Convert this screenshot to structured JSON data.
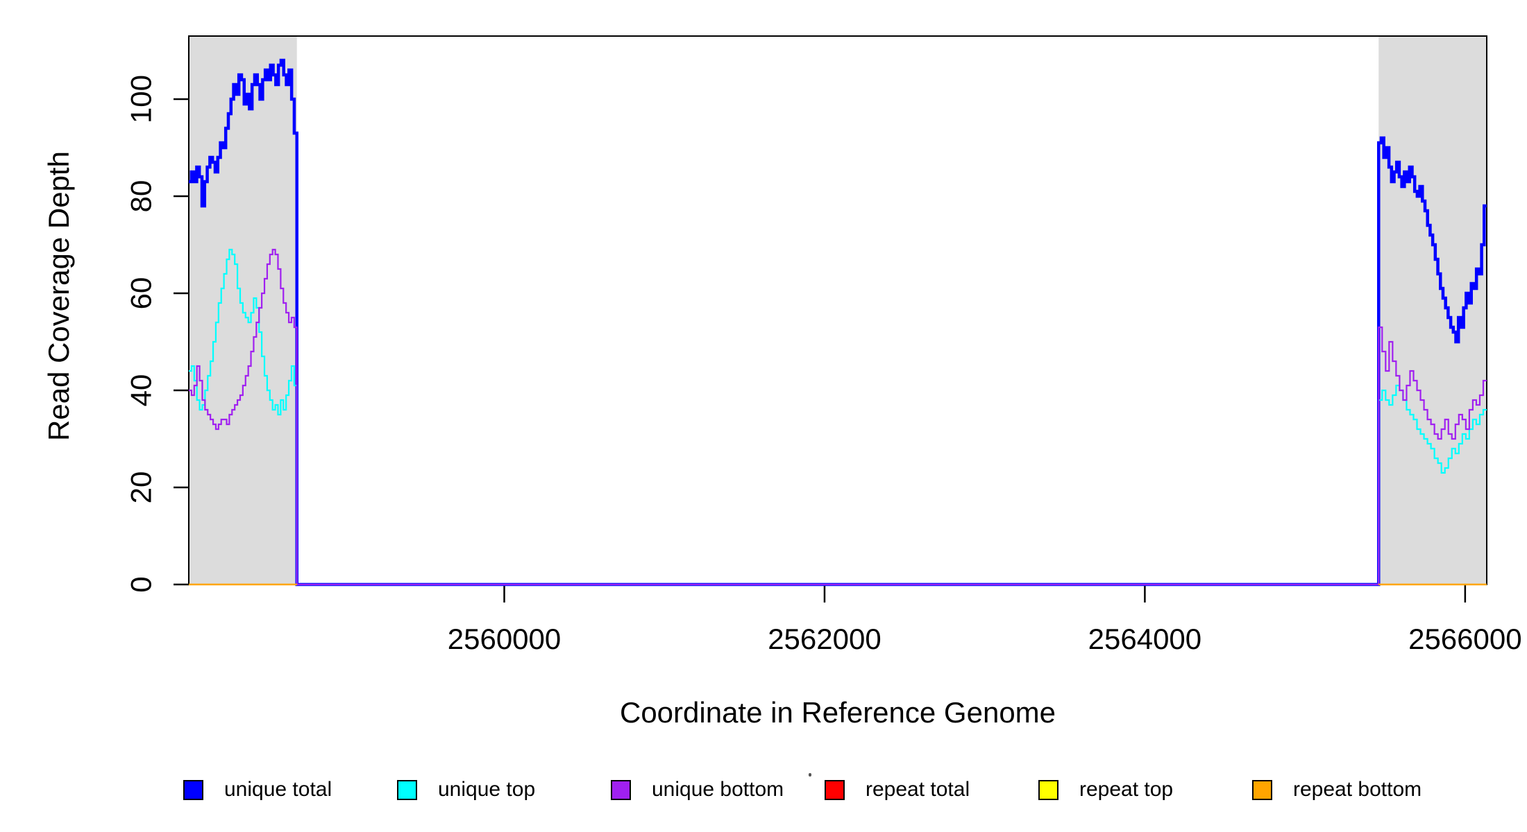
{
  "figure": {
    "background": "#ffffff",
    "xlabel": "Coordinate in Reference Genome",
    "ylabel": "Read Coverage Depth",
    "axis_color": "#000000",
    "shading_color": "#dcdcdc"
  },
  "legend": {
    "position": "bottom",
    "items": [
      {
        "label": "unique total",
        "color": "#0000ff"
      },
      {
        "label": "unique top",
        "color": "#00ffff"
      },
      {
        "label": "unique bottom",
        "color": "#a020f0"
      },
      {
        "label": "repeat total",
        "color": "#ff0000"
      },
      {
        "label": "repeat top",
        "color": "#ffff00"
      },
      {
        "label": "repeat bottom",
        "color": "#ffa500"
      }
    ]
  },
  "chart_data": {
    "type": "line",
    "subtype": "step",
    "title": "",
    "xlabel": "Coordinate in Reference Genome",
    "ylabel": "Read Coverage Depth",
    "x_ticks": [
      2560000,
      2562000,
      2564000,
      2566000
    ],
    "y_ticks": [
      0,
      20,
      40,
      60,
      80,
      100
    ],
    "x_range": [
      2558030,
      2566135
    ],
    "y_range": [
      0,
      113
    ],
    "grid": false,
    "legend_position": "bottom",
    "shaded_regions": [
      {
        "name": "left repeat region",
        "x_start": 2558030,
        "x_end": 2558705
      },
      {
        "name": "right repeat region",
        "x_start": 2565460,
        "x_end": 2566135
      }
    ],
    "series": [
      {
        "name": "unique total",
        "color": "#0000ff",
        "width": 4.5,
        "extent": "full",
        "left_values": [
          83,
          85,
          83,
          86,
          84,
          78,
          83,
          86,
          88,
          87,
          85,
          88,
          91,
          90,
          94,
          97,
          100,
          103,
          101,
          105,
          104,
          99,
          101,
          98,
          103,
          105,
          103,
          100,
          104,
          106,
          104,
          107,
          105,
          103,
          107,
          108,
          105,
          103,
          106,
          100,
          93
        ],
        "right_values": [
          91,
          92,
          88,
          90,
          86,
          83,
          85,
          87,
          84,
          82,
          85,
          83,
          86,
          84,
          81,
          80,
          82,
          79,
          77,
          74,
          72,
          70,
          67,
          64,
          61,
          59,
          57,
          55,
          53,
          52,
          50,
          55,
          53,
          57,
          60,
          58,
          62,
          61,
          65,
          64,
          70,
          78
        ]
      },
      {
        "name": "unique top",
        "color": "#00ffff",
        "width": 2.2,
        "extent": "full",
        "left_values": [
          44,
          45,
          42,
          38,
          36,
          37,
          40,
          43,
          46,
          50,
          54,
          58,
          61,
          64,
          67,
          69,
          68,
          66,
          61,
          58,
          56,
          55,
          54,
          56,
          59,
          57,
          52,
          47,
          43,
          40,
          38,
          36,
          37,
          35,
          38,
          36,
          39,
          42,
          45,
          41
        ],
        "right_values": [
          38,
          40,
          38,
          37,
          39,
          41,
          40,
          38,
          36,
          35,
          34,
          32,
          31,
          30,
          29,
          28,
          26,
          25,
          23,
          24,
          26,
          28,
          27,
          29,
          31,
          30,
          32,
          34,
          33,
          35,
          36
        ]
      },
      {
        "name": "unique bottom",
        "color": "#a020f0",
        "width": 2.2,
        "extent": "full",
        "left_values": [
          40,
          39,
          41,
          45,
          42,
          38,
          36,
          35,
          34,
          33,
          32,
          33,
          34,
          34,
          33,
          35,
          36,
          37,
          38,
          39,
          41,
          43,
          45,
          48,
          51,
          54,
          57,
          60,
          63,
          66,
          68,
          69,
          68,
          65,
          61,
          58,
          56,
          54,
          55,
          53
        ],
        "right_values": [
          53,
          48,
          44,
          50,
          46,
          43,
          40,
          38,
          41,
          44,
          42,
          40,
          38,
          36,
          34,
          33,
          31,
          30,
          32,
          34,
          31,
          30,
          33,
          35,
          34,
          32,
          36,
          38,
          37,
          39,
          42
        ]
      },
      {
        "name": "repeat total",
        "color": "#ff0000",
        "width": 2,
        "extent": "regions",
        "left_values": [
          0,
          0
        ],
        "right_values": [
          0,
          0
        ]
      },
      {
        "name": "repeat top",
        "color": "#ffff00",
        "width": 2,
        "extent": "regions",
        "left_values": [
          0,
          0
        ],
        "right_values": [
          0,
          0
        ]
      },
      {
        "name": "repeat bottom",
        "color": "#ffa500",
        "width": 2.6,
        "extent": "regions",
        "left_values": [
          0,
          0
        ],
        "right_values": [
          0,
          0
        ]
      }
    ]
  }
}
